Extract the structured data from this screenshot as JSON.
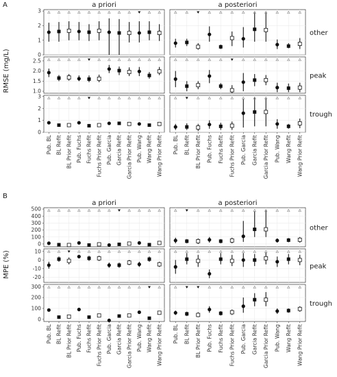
{
  "chart_data": [
    {
      "type": "scatter",
      "panel_label": "A",
      "ylabel": "RMSE (mg/L)",
      "facet_columns": [
        "a priori",
        "a posteriori"
      ],
      "facet_rows": [
        "other",
        "peak",
        "trough"
      ],
      "categories": {
        "a priori": [
          "Pub. BL",
          "BL Refit",
          "BL Prior Refit",
          "Pub. Fuchs",
          "Fuchs Refit",
          "Fuchs Prior Refit",
          "Pub. Garcia",
          "Garcia Refit",
          "Garcia Prior Refit",
          "Pub. Wang",
          "Wang Refit",
          "Wang Prior Refit"
        ],
        "a posteriori": [
          "Pub. BL",
          "BL Refit",
          "BL Prior Refit",
          "Pub. Fuchs",
          "Fuchs Refit",
          "Fuchs Prior Refit",
          "Pub. Garcia",
          "Garcia Refit",
          "Garcia Prior Refit",
          "Pub. Wang",
          "Wang Refit",
          "Wang Prior Refit"
        ]
      },
      "marker_legend": {
        "Pub.": "circle",
        "Refit": "square",
        "Prior Refit": "open-square"
      },
      "ylim": {
        "other": [
          0.0,
          3.1
        ],
        "peak": [
          0.9,
          2.7
        ],
        "trough": [
          0.0,
          3.1
        ]
      },
      "yticks": {
        "other": [
          0,
          1,
          2,
          3
        ],
        "peak": [
          1.0,
          1.5,
          2.0,
          2.5
        ],
        "trough": [
          0,
          1,
          2,
          3
        ]
      },
      "cells": {
        "other": {
          "a priori": {
            "y": [
              1.55,
              1.6,
              1.65,
              1.6,
              1.55,
              1.65,
              1.55,
              1.5,
              1.5,
              1.5,
              1.55,
              1.5
            ],
            "lo": [
              0.9,
              0.9,
              1.0,
              1.0,
              0.95,
              1.0,
              0.0,
              0.0,
              0.85,
              0.85,
              1.0,
              0.95
            ],
            "hi": [
              2.2,
              2.25,
              2.3,
              2.25,
              2.1,
              2.3,
              2.5,
              2.45,
              2.25,
              2.3,
              2.3,
              2.1
            ],
            "top_markers": [
              "tri-open",
              "tri-open",
              "tri-open",
              "tri-open",
              "tri-open",
              "tri-open",
              "tri-open",
              "tri-open",
              "tri-open",
              "tri-filled",
              "tri-open",
              "tri-open"
            ]
          },
          "a posteriori": {
            "y": [
              0.8,
              0.85,
              0.55,
              1.4,
              0.55,
              1.15,
              1.1,
              1.75,
              1.7,
              0.7,
              0.6,
              0.75
            ],
            "lo": [
              0.5,
              0.6,
              0.35,
              0.9,
              0.4,
              0.6,
              0.5,
              0.9,
              0.9,
              0.4,
              0.45,
              0.4
            ],
            "hi": [
              1.1,
              1.1,
              0.8,
              1.95,
              0.7,
              1.6,
              1.9,
              2.9,
              2.9,
              1.05,
              0.8,
              1.15
            ],
            "top_markers": [
              "tri-open",
              "tri-open",
              "tri-filled",
              "tri-open",
              "tri-open",
              "tri-open",
              "tri-open",
              "tri-open",
              "tri-open",
              "tri-open",
              "tri-open",
              "tri-open"
            ]
          }
        },
        "peak": {
          "a priori": {
            "y": [
              1.92,
              1.65,
              1.68,
              1.62,
              1.6,
              1.62,
              2.1,
              2.02,
              1.95,
              1.98,
              1.78,
              1.98
            ],
            "lo": [
              1.7,
              1.5,
              1.52,
              1.5,
              1.45,
              1.45,
              1.9,
              1.8,
              1.75,
              1.75,
              1.62,
              1.8
            ],
            "hi": [
              2.12,
              1.8,
              1.85,
              1.78,
              1.78,
              1.82,
              2.3,
              2.22,
              2.18,
              2.2,
              1.95,
              2.2
            ],
            "top_markers": [
              "tri-open",
              "tri-open",
              "tri-open",
              "tri-open",
              "tri-filled",
              "tri-open",
              "tri-open",
              "tri-open",
              "tri-open",
              "tri-open",
              "tri-open",
              "tri-open"
            ]
          },
          "a posteriori": {
            "y": [
              1.6,
              1.25,
              1.3,
              1.75,
              1.25,
              1.05,
              1.45,
              1.55,
              1.55,
              1.18,
              1.15,
              1.18
            ],
            "lo": [
              1.2,
              1.0,
              1.1,
              1.4,
              1.1,
              0.85,
              1.0,
              1.25,
              1.3,
              0.95,
              0.95,
              0.95
            ],
            "hi": [
              2.0,
              1.5,
              1.5,
              2.05,
              1.4,
              1.3,
              1.9,
              1.85,
              1.8,
              1.42,
              1.38,
              1.42
            ],
            "top_markers": [
              "tri-open",
              "tri-open",
              "tri-open",
              "tri-open",
              "tri-open",
              "tri-filled",
              "tri-open",
              "tri-open",
              "tri-open",
              "tri-open",
              "tri-open",
              "tri-open"
            ]
          }
        },
        "trough": {
          "a priori": {
            "y": [
              0.8,
              0.6,
              0.6,
              0.8,
              0.55,
              0.6,
              0.75,
              0.75,
              0.7,
              0.7,
              0.6,
              0.7
            ],
            "lo": [
              0.7,
              0.5,
              0.5,
              0.7,
              0.45,
              0.5,
              0.65,
              0.65,
              0.6,
              0.6,
              0.5,
              0.6
            ],
            "hi": [
              0.9,
              0.7,
              0.7,
              0.9,
              0.65,
              0.7,
              0.85,
              0.85,
              0.8,
              0.8,
              0.7,
              0.8
            ],
            "top_markers": [
              "tri-open",
              "tri-open",
              "tri-open",
              "tri-open",
              "tri-filled",
              "tri-open",
              "tri-open",
              "tri-open",
              "tri-open",
              "tri-open",
              "tri-open",
              "tri-open"
            ]
          },
          "a posteriori": {
            "y": [
              0.45,
              0.45,
              0.4,
              0.65,
              0.5,
              0.55,
              1.6,
              1.7,
              1.7,
              0.7,
              0.5,
              0.75
            ],
            "lo": [
              0.2,
              0.2,
              0.1,
              0.3,
              0.2,
              0.2,
              0.4,
              0.5,
              0.5,
              0.3,
              0.3,
              0.35
            ],
            "hi": [
              0.7,
              0.75,
              0.7,
              1.0,
              0.8,
              0.9,
              2.8,
              2.9,
              2.85,
              1.1,
              0.7,
              1.15
            ],
            "top_markers": [
              "tri-open",
              "tri-filled",
              "tri-open",
              "tri-open",
              "tri-open",
              "tri-open",
              "tri-open",
              "tri-open",
              "tri-open",
              "tri-open",
              "tri-open",
              "tri-open"
            ]
          }
        }
      }
    },
    {
      "type": "scatter",
      "panel_label": "B",
      "ylabel": "MPE (%)",
      "facet_columns": [
        "a priori",
        "a posteriori"
      ],
      "facet_rows": [
        "other",
        "peak",
        "trough"
      ],
      "categories": {
        "a priori": [
          "Pub. BL",
          "BL Refit",
          "BL Prior Refit",
          "Pub. Fuchs",
          "Fuchs Refit",
          "Fuchs Prior Refit",
          "Pub. Garcia",
          "Garcia Refit",
          "Garcia Prior Refit",
          "Pub. Wang",
          "Wang Refit",
          "Wang Prior Refit"
        ],
        "a posteriori": [
          "Pub. BL",
          "BL Refit",
          "BL Prior Refit",
          "Pub. Fuchs",
          "Fuchs Refit",
          "Fuchs Prior Refit",
          "Pub. Garcia",
          "Garcia Refit",
          "Garcia Prior Refit",
          "Pub. Wang",
          "Wang Refit",
          "Wang Prior Refit"
        ]
      },
      "marker_legend": {
        "Pub.": "circle",
        "Refit": "square",
        "Prior Refit": "open-square"
      },
      "ylim": {
        "other": [
          -40,
          520
        ],
        "peak": [
          -26,
          13
        ],
        "trough": [
          -20,
          320
        ]
      },
      "yticks": {
        "other": [
          0,
          100,
          200,
          300,
          400,
          500
        ],
        "peak": [
          -20,
          -10,
          0,
          10
        ],
        "trough": [
          0,
          100,
          200,
          300
        ]
      },
      "cells": {
        "other": {
          "a priori": {
            "y": [
              10,
              -10,
              -15,
              15,
              -15,
              -5,
              -15,
              -5,
              5,
              15,
              -10,
              15
            ],
            "lo": [
              0,
              -20,
              -25,
              5,
              -25,
              -15,
              -25,
              -15,
              -5,
              5,
              -20,
              0
            ],
            "hi": [
              20,
              0,
              -5,
              25,
              -5,
              5,
              -5,
              5,
              15,
              25,
              0,
              30
            ],
            "top_markers": [
              "tri-open",
              "tri-open",
              "tri-open",
              "tri-open",
              "tri-open",
              "tri-open",
              "tri-open",
              "tri-filled",
              "tri-open",
              "tri-open",
              "tri-open",
              "tri-open"
            ]
          },
          "a posteriori": {
            "y": [
              50,
              40,
              40,
              60,
              40,
              50,
              110,
              210,
              210,
              50,
              55,
              60
            ],
            "lo": [
              10,
              10,
              0,
              20,
              10,
              10,
              30,
              100,
              100,
              20,
              25,
              20
            ],
            "hi": [
              90,
              70,
              80,
              100,
              70,
              90,
              330,
              470,
              480,
              80,
              85,
              100
            ],
            "top_markers": [
              "tri-open",
              "tri-filled",
              "tri-open",
              "tri-open",
              "tri-open",
              "tri-open",
              "tri-open",
              "tri-open",
              "tri-open",
              "tri-open",
              "tri-open",
              "tri-open"
            ]
          }
        },
        "peak": {
          "a priori": {
            "y": [
              -6,
              1,
              -1,
              4,
              2,
              2,
              -6,
              -6,
              -3,
              -5,
              1,
              -5
            ],
            "lo": [
              -10,
              -2,
              -5,
              2,
              -1,
              -1,
              -9,
              -9,
              -6,
              -8,
              -2,
              -8
            ],
            "hi": [
              -2,
              4,
              3,
              6,
              5,
              5,
              -3,
              -3,
              0,
              -2,
              4,
              -2
            ],
            "top_markers": [
              "tri-open",
              "tri-open",
              "tri-filled",
              "tri-open",
              "tri-open",
              "tri-open",
              "tri-open",
              "tri-open",
              "tri-open",
              "tri-open",
              "tri-open",
              "tri-open"
            ]
          },
          "a posteriori": {
            "y": [
              -8,
              1,
              -1,
              -16,
              1,
              -1,
              0,
              0,
              2,
              -2,
              1,
              0
            ],
            "lo": [
              -16,
              -5,
              -8,
              -21,
              -5,
              -7,
              -8,
              -7,
              -5,
              -8,
              -5,
              -6
            ],
            "hi": [
              0,
              8,
              6,
              -11,
              8,
              6,
              8,
              7,
              9,
              4,
              7,
              6
            ],
            "top_markers": [
              "tri-open",
              "tri-open",
              "tri-open",
              "tri-open",
              "tri-open",
              "tri-open",
              "tri-open",
              "tri-open",
              "tri-open",
              "tri-open",
              "tri-open",
              "tri-open"
            ]
          }
        },
        "trough": {
          "a priori": {
            "y": [
              85,
              20,
              25,
              90,
              20,
              35,
              -10,
              30,
              35,
              65,
              10,
              60
            ],
            "lo": [
              75,
              10,
              15,
              80,
              10,
              25,
              -20,
              20,
              25,
              55,
              0,
              50
            ],
            "hi": [
              95,
              30,
              35,
              100,
              30,
              45,
              0,
              40,
              45,
              75,
              20,
              70
            ],
            "top_markers": [
              "tri-open",
              "tri-open",
              "tri-open",
              "tri-open",
              "tri-open",
              "tri-open",
              "tri-open",
              "tri-open",
              "tri-open",
              "tri-open",
              "tri-filled",
              "tri-open"
            ]
          },
          "a posteriori": {
            "y": [
              60,
              50,
              40,
              90,
              55,
              65,
              120,
              180,
              180,
              75,
              80,
              95
            ],
            "lo": [
              40,
              30,
              20,
              60,
              35,
              40,
              60,
              120,
              120,
              50,
              60,
              70
            ],
            "hi": [
              80,
              70,
              65,
              120,
              75,
              90,
              200,
              240,
              250,
              100,
              100,
              120
            ],
            "top_markers": [
              "tri-open",
              "tri-filled",
              "tri-filled",
              "tri-open",
              "tri-open",
              "tri-open",
              "tri-open",
              "tri-open",
              "tri-open",
              "tri-open",
              "tri-open",
              "tri-open"
            ]
          }
        }
      }
    }
  ]
}
